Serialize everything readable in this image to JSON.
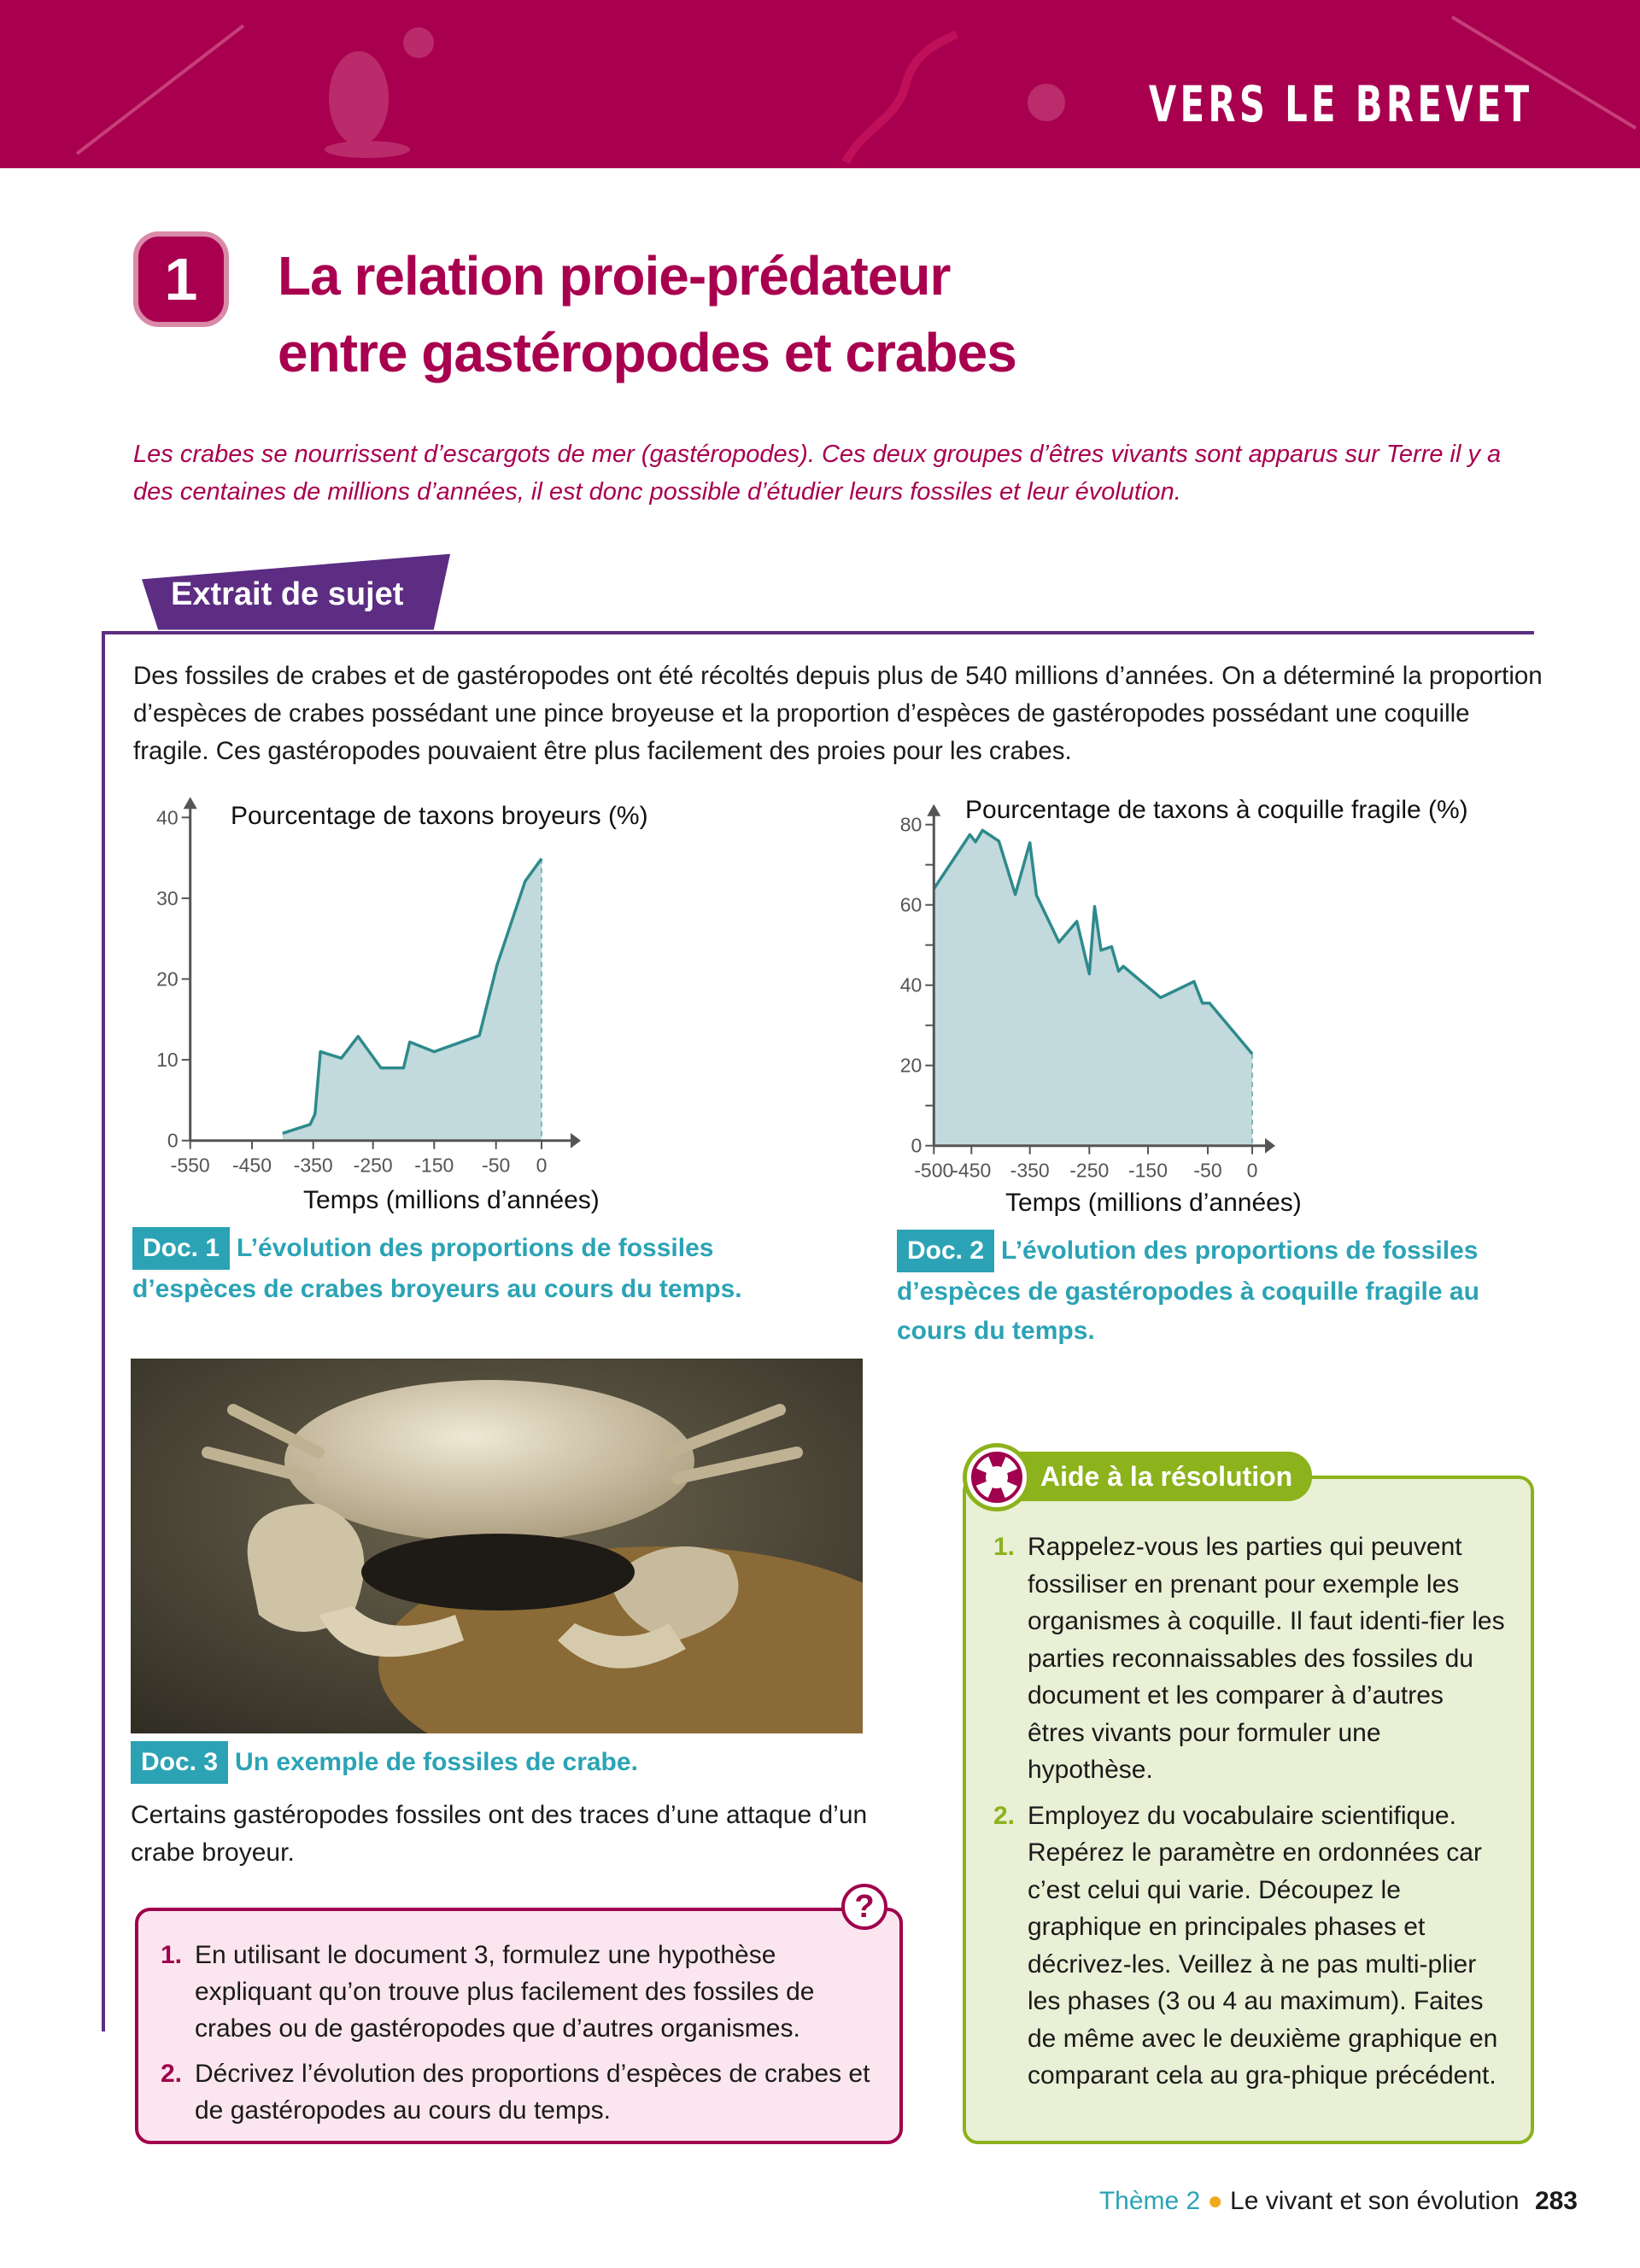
{
  "banner": {
    "title": "VERS LE BREVET",
    "color": "#a8004f"
  },
  "exercise": {
    "number": "1",
    "title_line1": "La relation proie-prédateur",
    "title_line2": "entre gastéropodes et crabes",
    "intro": "Les crabes se nourrissent d’escargots de mer (gastéropodes). Ces deux groupes d’êtres vivants sont apparus sur Terre il y a des centaines de millions d’années, il est donc possible d’étudier leurs fossiles et leur évolution."
  },
  "extrait": {
    "label": "Extrait de sujet",
    "statement": "Des fossiles de crabes et de gastéropodes ont été récoltés depuis plus de 540 millions d’années. On a déterminé la proportion d’espèces de crabes possédant une pince broyeuse et la proportion d’espèces de gastéropodes possédant une coquille fragile. Ces gastéropodes pouvaient être plus facilement des proies pour les crabes."
  },
  "chart_data": [
    {
      "type": "area",
      "ylabel": "Pourcentage de taxons broyeurs (%)",
      "xlabel": "Temps (millions d’années)",
      "x_ticks": [
        -550,
        -450,
        -350,
        -250,
        -150,
        -50,
        0
      ],
      "y_ticks": [
        0,
        10,
        20,
        30,
        40
      ],
      "xlim": [
        -550,
        0
      ],
      "ylim": [
        0,
        40
      ],
      "x": [
        -400,
        -355,
        -347,
        -338,
        -303,
        -275,
        -237,
        -200,
        -190,
        -150,
        -77,
        -49,
        -18,
        0
      ],
      "y": [
        0.9,
        2,
        3.3,
        11,
        10.2,
        12.9,
        9,
        9,
        12.2,
        11,
        13,
        21.7,
        32.1,
        34.9
      ],
      "colors": {
        "line": "#2e8a8c",
        "fill": "#c2dadd"
      }
    },
    {
      "type": "area",
      "ylabel": "Pourcentage de taxons à coquille fragile (%)",
      "xlabel": "Temps (millions d’années)",
      "x_ticks": [
        -500,
        -450,
        -350,
        -250,
        -150,
        -50,
        0
      ],
      "y_ticks": [
        0,
        20,
        40,
        60,
        80
      ],
      "xlim": [
        -500,
        0
      ],
      "ylim": [
        0,
        80
      ],
      "x": [
        -500,
        -452,
        -443,
        -431,
        -403,
        -375,
        -350,
        -339,
        -301,
        -271,
        -250,
        -241,
        -230,
        -212,
        -200,
        -192,
        -129,
        -73,
        -59,
        -48,
        0
      ],
      "y": [
        64,
        77.5,
        75.7,
        78.6,
        75.9,
        62.6,
        75.5,
        62.4,
        50.7,
        55.9,
        42.8,
        59.6,
        48.7,
        49.6,
        43.5,
        44.7,
        36.9,
        40.9,
        35.5,
        35.5,
        22.9
      ],
      "colors": {
        "line": "#2e8a8c",
        "fill": "#c2dadd"
      }
    }
  ],
  "docs": {
    "doc1": {
      "tag": "Doc. 1",
      "caption": "L’évolution des proportions de fossiles d’espèces de crabes broyeurs au cours du temps."
    },
    "doc2": {
      "tag": "Doc. 2",
      "caption": "L’évolution des proportions de fossiles d’espèces de gastéropodes à coquille fragile au cours du temps."
    },
    "doc3": {
      "tag": "Doc. 3",
      "caption": "Un exemple de fossiles de crabe."
    }
  },
  "certains": "Certains gastéropodes fossiles ont des traces d’une attaque d’un crabe broyeur.",
  "questions": {
    "icon": "question-mark-icon",
    "items": [
      {
        "n": "1.",
        "text": "En utilisant le document 3, formulez une hypothèse expliquant qu’on trouve plus facilement des fossiles de crabes ou de gastéropodes que d’autres organismes."
      },
      {
        "n": "2.",
        "text": "Décrivez l’évolution des proportions d’espèces de crabes et de gastéropodes au cours du temps."
      }
    ]
  },
  "aide": {
    "title": "Aide à la résolution",
    "icon": "lifebuoy-icon",
    "items": [
      {
        "n": "1.",
        "text": "Rappelez-vous les parties qui peuvent fossiliser en prenant pour exemple les organismes à coquille. Il faut identi-fier les parties reconnaissables des fossiles du document et les comparer à d’autres êtres vivants pour formuler une hypothèse."
      },
      {
        "n": "2.",
        "text": "Employez du vocabulaire scientifique. Repérez le paramètre en ordonnées car c’est celui qui varie. Découpez le graphique en principales phases et décrivez-les. Veillez à ne pas multi-plier les phases (3 ou 4 au maximum). Faites de même avec le deuxième graphique en comparant cela au gra-phique précédent."
      }
    ]
  },
  "footer": {
    "theme": "Thème 2",
    "subject": "Le vivant et son évolution",
    "page": "283"
  }
}
